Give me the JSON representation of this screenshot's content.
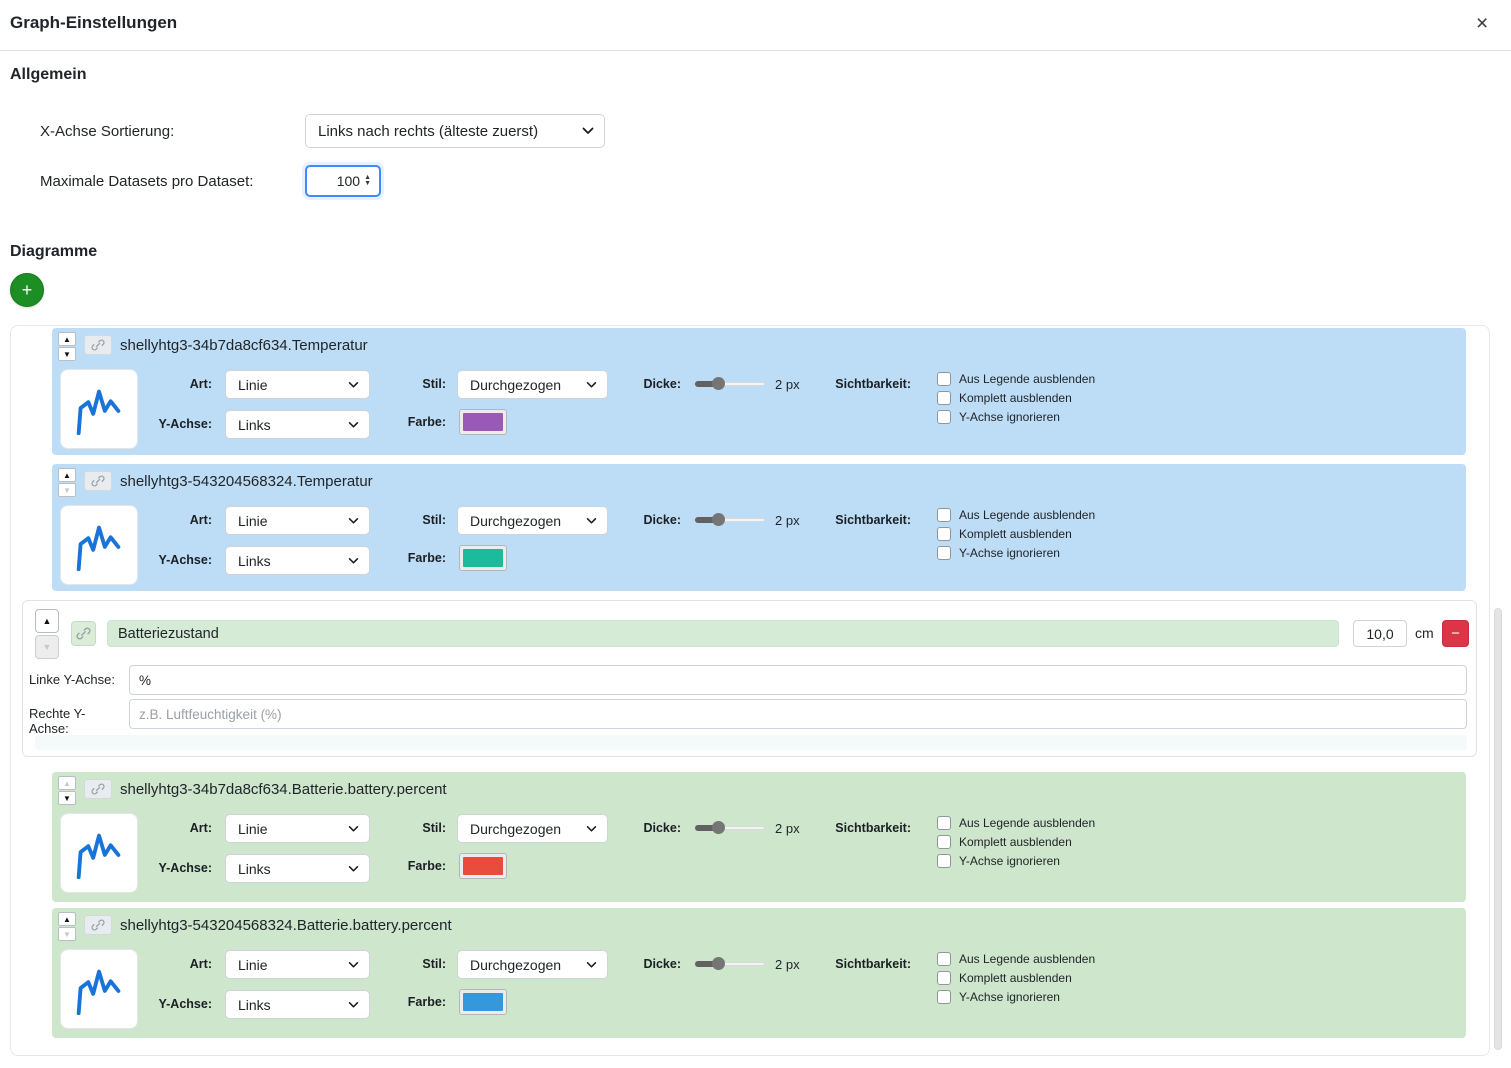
{
  "icons": {
    "close": "×",
    "add": "+",
    "up": "▲",
    "down": "▼",
    "minus": "−"
  },
  "header": {
    "title": "Graph-Einstellungen"
  },
  "general": {
    "heading": "Allgemein",
    "x_axis_label": "X-Achse Sortierung:",
    "x_axis_value": "Links nach rechts (älteste zuerst)",
    "max_datasets_label": "Maximale Datasets pro Dataset:",
    "max_datasets_value": "100"
  },
  "diagrams": {
    "heading": "Diagramme",
    "labels": {
      "art": "Art:",
      "y_achse": "Y-Achse:",
      "stil": "Stil:",
      "farbe": "Farbe:",
      "dicke": "Dicke:",
      "sichtbarkeit": "Sichtbarkeit:"
    },
    "checkbox_labels": [
      "Aus Legende ausblenden",
      "Komplett ausblenden",
      "Y-Achse ignorieren"
    ],
    "chart_panel": {
      "name_value": "Batteriezustand",
      "width_value": "10,0",
      "width_unit": "cm",
      "left_axis_label": "Linke Y-Achse:",
      "left_axis_value": "%",
      "right_axis_label": "Rechte Y-Achse:",
      "right_axis_placeholder": "z.B. Luftfeuchtigkeit (%)"
    },
    "datasets": [
      {
        "title": "shellyhtg3-34b7da8cf634.Temperatur",
        "group": "blue",
        "art": "Linie",
        "y_achse": "Links",
        "stil": "Durchgezogen",
        "color": "#9b59b6",
        "dicke": "2 px",
        "up_disabled": false,
        "down_disabled": false
      },
      {
        "title": "shellyhtg3-543204568324.Temperatur",
        "group": "blue",
        "art": "Linie",
        "y_achse": "Links",
        "stil": "Durchgezogen",
        "color": "#1abc9c",
        "dicke": "2 px",
        "up_disabled": false,
        "down_disabled": true
      },
      {
        "title": "shellyhtg3-34b7da8cf634.Batterie.battery.percent",
        "group": "green",
        "art": "Linie",
        "y_achse": "Links",
        "stil": "Durchgezogen",
        "color": "#e74c3c",
        "dicke": "2 px",
        "up_disabled": true,
        "down_disabled": false
      },
      {
        "title": "shellyhtg3-543204568324.Batterie.battery.percent",
        "group": "green",
        "art": "Linie",
        "y_achse": "Links",
        "stil": "Durchgezogen",
        "color": "#3498db",
        "dicke": "2 px",
        "up_disabled": false,
        "down_disabled": true
      }
    ]
  }
}
